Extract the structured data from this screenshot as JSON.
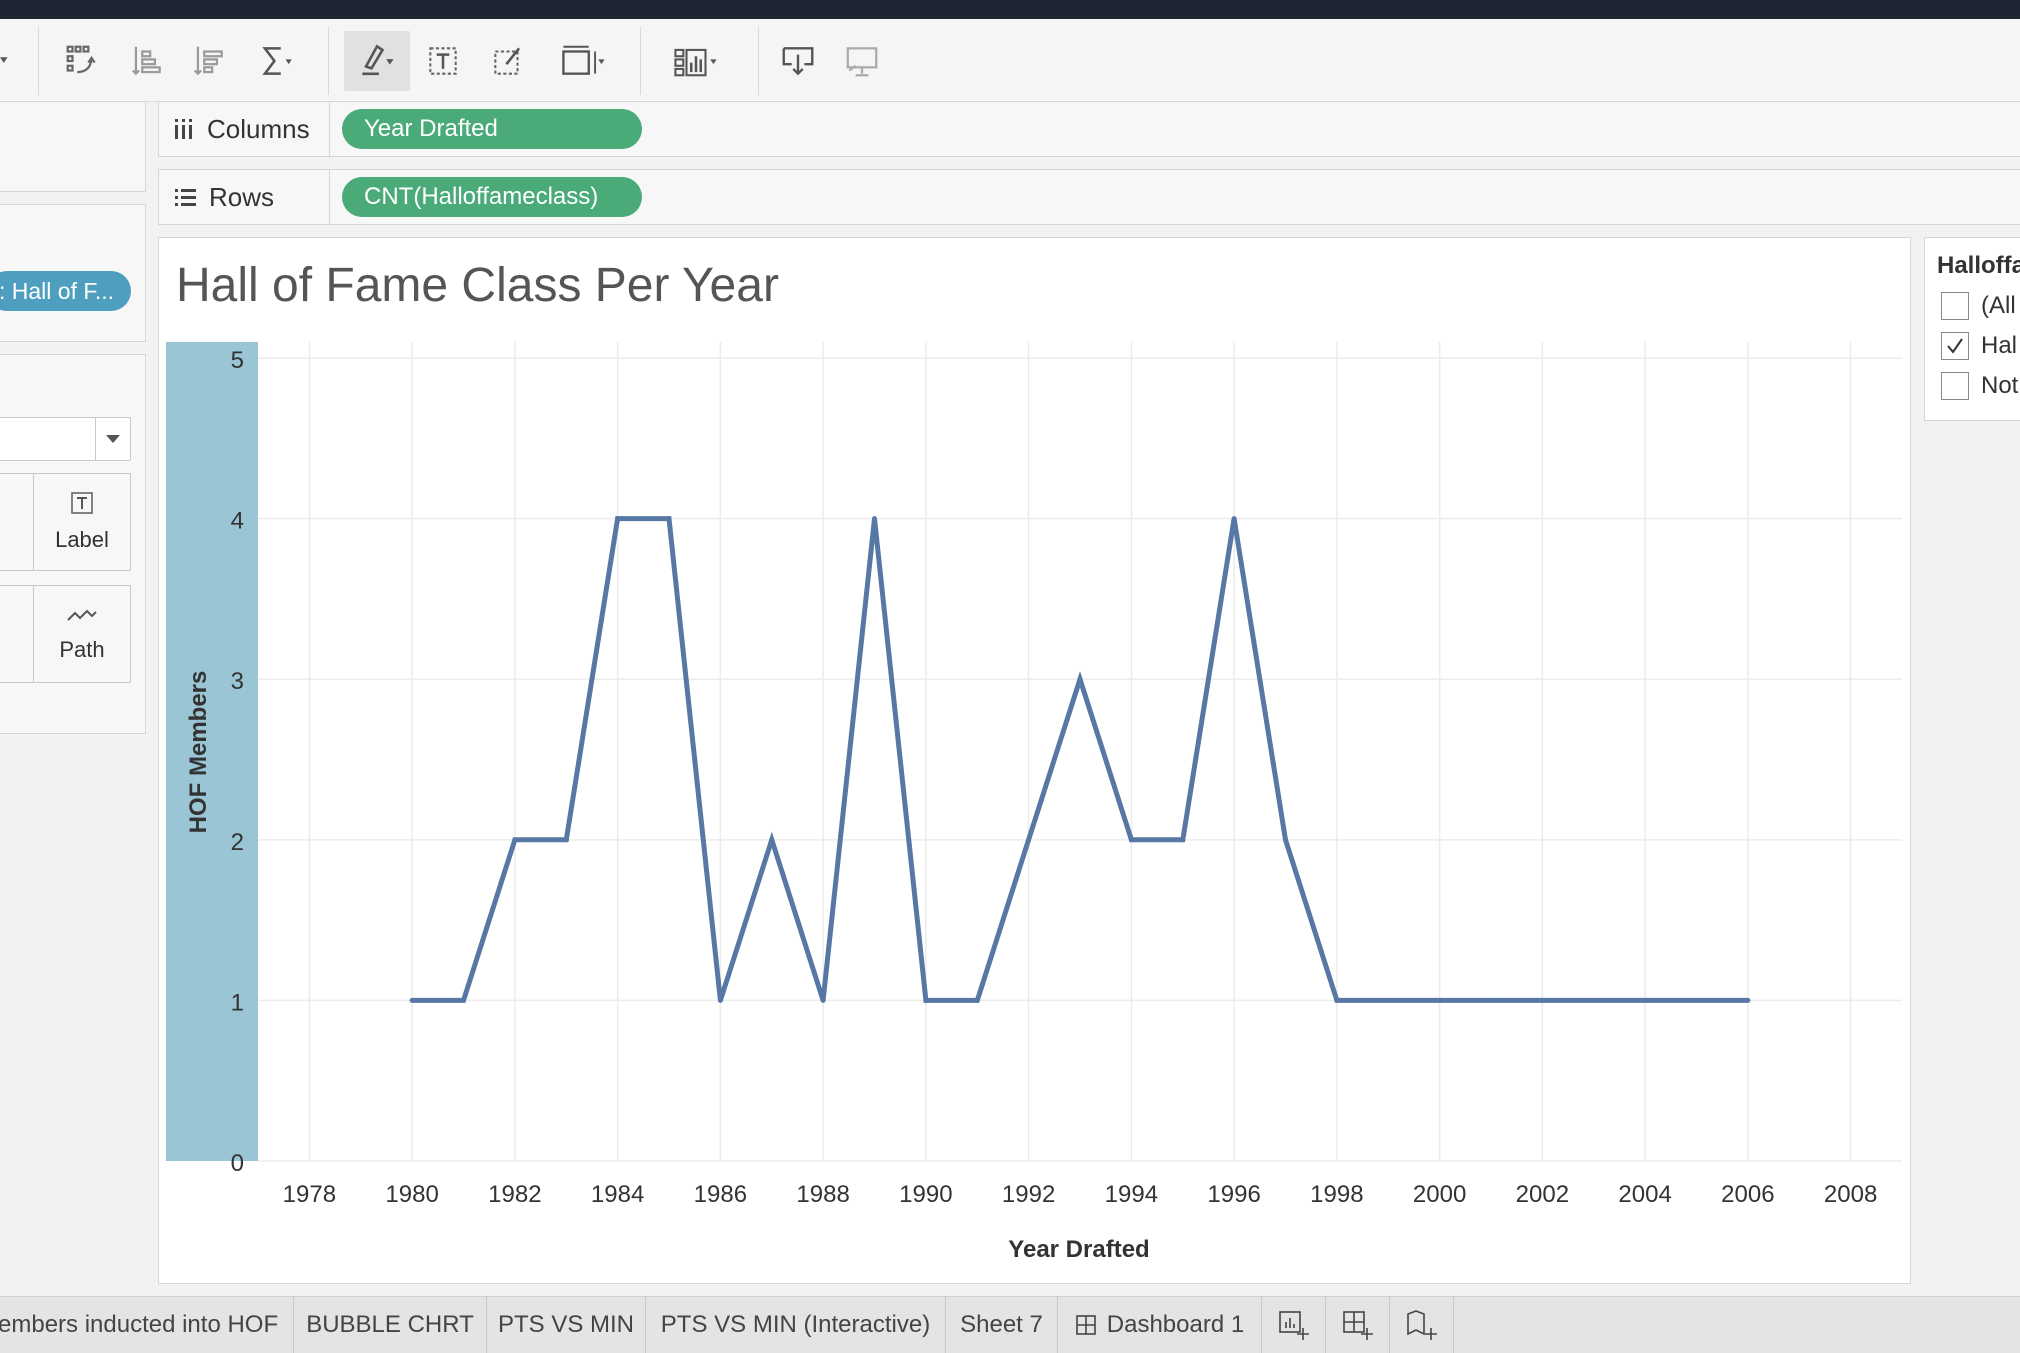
{
  "toolbar": {
    "icons": [
      "swap-icon",
      "sort-ascending-icon",
      "sort-descending-icon",
      "totals-icon",
      "highlight-icon",
      "text-label-icon",
      "annotate-icon",
      "fit-icon",
      "show-me-icon",
      "download-icon",
      "present-icon"
    ]
  },
  "shelves": {
    "columns_label": "Columns",
    "columns_pill": "Year Drafted",
    "rows_label": "Rows",
    "rows_pill": "CNT(Halloffameclass)"
  },
  "left_panel": {
    "filter_pill": ": Hall of F...",
    "marks_dropdown_value": "",
    "label_button": "Label",
    "path_button": "Path"
  },
  "viz": {
    "title": "Hall of Fame Class Per Year"
  },
  "legend": {
    "title": "Halloffa",
    "items": [
      {
        "label": "(All",
        "checked": false
      },
      {
        "label": "Hal",
        "checked": true
      },
      {
        "label": "Not",
        "checked": false
      }
    ]
  },
  "chart_data": {
    "type": "line",
    "title": "Hall of Fame Class Per Year",
    "xlabel": "Year Drafted",
    "ylabel": "HOF Members",
    "xlim": [
      1977,
      2009
    ],
    "ylim": [
      0,
      5.1
    ],
    "x_ticks": [
      "1978",
      "1980",
      "1982",
      "1984",
      "1986",
      "1988",
      "1990",
      "1992",
      "1994",
      "1996",
      "1998",
      "2000",
      "2002",
      "2004",
      "2006",
      "2008"
    ],
    "y_ticks": [
      "0",
      "1",
      "2",
      "3",
      "4",
      "5"
    ],
    "grid": true,
    "color": "#5778a4",
    "series": [
      {
        "x": [
          1980,
          1981,
          1982,
          1983,
          1984,
          1985,
          1986,
          1987,
          1988,
          1989,
          1990,
          1991,
          1992,
          1993,
          1994,
          1995,
          1996,
          1997,
          1998,
          1999,
          2000,
          2001,
          2002,
          2003,
          2004,
          2005,
          2006
        ],
        "values": [
          1,
          1,
          2,
          2,
          4,
          4,
          1,
          2,
          1,
          4,
          1,
          1,
          2,
          3,
          2,
          2,
          4,
          2,
          1,
          1,
          1,
          1,
          1,
          1,
          1,
          1,
          1
        ]
      }
    ]
  },
  "tabs": [
    "embers inducted into HOF",
    "BUBBLE CHRT",
    "PTS VS MIN",
    "PTS VS MIN (Interactive)",
    "Sheet 7",
    "Dashboard 1"
  ]
}
